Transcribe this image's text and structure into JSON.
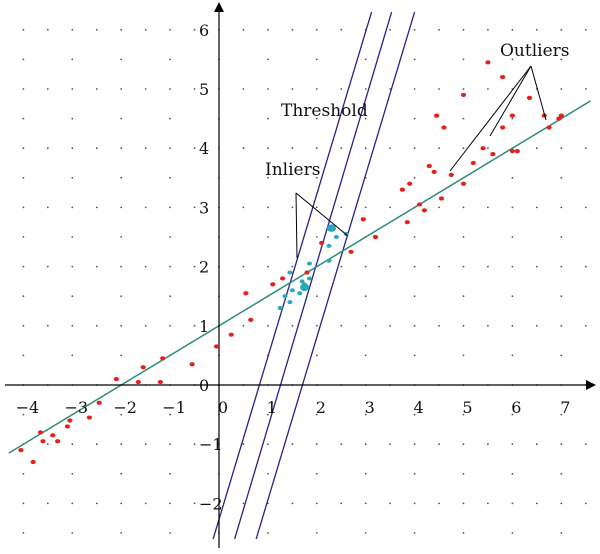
{
  "diagram": {
    "annotations": {
      "threshold": "Threshold",
      "inliers": "Inliers",
      "outliers": "Outliers"
    },
    "colors": {
      "axes": "#000000",
      "grid_dots": "#555555",
      "fit_line": "#2e8b7a",
      "threshold_lines": "#23238c",
      "outlier_points": "#e5211c",
      "inlier_points": "#2aa8b8",
      "pointer_lines": "#000000"
    },
    "axes": {
      "x_ticks": [
        "−4",
        "−3",
        "−2",
        "−1",
        "0",
        "1",
        "2",
        "3",
        "4",
        "5",
        "6",
        "7"
      ],
      "y_ticks": [
        "−2",
        "−1",
        "0",
        "1",
        "2",
        "3",
        "4",
        "5",
        "6"
      ],
      "x_range": [
        -4.4,
        7.6
      ],
      "y_range": [
        -2.7,
        6.3
      ]
    },
    "fit_line": {
      "slope": 0.5,
      "intercept": 1.0,
      "x_range": [
        -4.3,
        7.6
      ]
    },
    "threshold_lines": [
      {
        "slope": 2.75,
        "x_at_y_minus_2_6": -0.12,
        "x_at_y_6_3": 3.12
      },
      {
        "slope": 2.75,
        "x_at_y_minus_2_6": 0.32,
        "x_at_y_6_3": 3.53
      },
      {
        "slope": 2.75,
        "x_at_y_minus_2_6": 0.76,
        "x_at_y_6_3": 4.0
      }
    ],
    "inlier_points": [
      [
        1.45,
        1.9
      ],
      [
        1.5,
        1.6
      ],
      [
        1.45,
        1.4
      ],
      [
        1.35,
        1.5
      ],
      [
        1.25,
        1.3
      ],
      [
        1.7,
        1.75
      ],
      [
        1.85,
        2.05
      ],
      [
        1.75,
        1.7
      ],
      [
        1.65,
        1.55
      ],
      [
        1.85,
        1.8
      ],
      [
        2.25,
        2.35
      ],
      [
        2.3,
        2.65
      ],
      [
        2.4,
        2.5
      ],
      [
        2.6,
        2.55
      ],
      [
        2.25,
        2.1
      ]
    ],
    "inlier_large_points": [
      [
        2.3,
        2.65
      ],
      [
        1.75,
        1.65
      ]
    ],
    "outlier_points": [
      [
        -4.05,
        -1.1
      ],
      [
        -3.8,
        -1.3
      ],
      [
        -3.65,
        -0.8
      ],
      [
        -3.6,
        -0.95
      ],
      [
        -3.4,
        -0.85
      ],
      [
        -3.3,
        -0.95
      ],
      [
        -3.1,
        -0.7
      ],
      [
        -3.05,
        -0.6
      ],
      [
        -2.65,
        -0.55
      ],
      [
        -2.45,
        -0.3
      ],
      [
        -2.1,
        0.1
      ],
      [
        -1.65,
        0.05
      ],
      [
        -1.55,
        0.3
      ],
      [
        -1.2,
        0.05
      ],
      [
        -1.15,
        0.45
      ],
      [
        -0.55,
        0.35
      ],
      [
        -0.05,
        0.65
      ],
      [
        0.25,
        0.85
      ],
      [
        0.65,
        1.1
      ],
      [
        0.55,
        1.55
      ],
      [
        1.1,
        1.7
      ],
      [
        1.3,
        1.8
      ],
      [
        1.8,
        1.9
      ],
      [
        2.1,
        2.4
      ],
      [
        2.7,
        2.25
      ],
      [
        2.95,
        2.8
      ],
      [
        3.2,
        2.5
      ],
      [
        3.75,
        3.3
      ],
      [
        3.9,
        3.4
      ],
      [
        3.85,
        2.75
      ],
      [
        4.1,
        3.05
      ],
      [
        4.2,
        2.95
      ],
      [
        4.3,
        3.7
      ],
      [
        4.4,
        3.6
      ],
      [
        4.55,
        3.15
      ],
      [
        4.75,
        3.55
      ],
      [
        5.0,
        3.4
      ],
      [
        5.2,
        3.75
      ],
      [
        5.4,
        4.0
      ],
      [
        5.6,
        3.9
      ],
      [
        5.8,
        4.35
      ],
      [
        6.0,
        4.55
      ],
      [
        6.0,
        3.95
      ],
      [
        6.1,
        3.95
      ],
      [
        6.35,
        4.85
      ],
      [
        6.65,
        4.55
      ],
      [
        6.75,
        4.35
      ],
      [
        6.95,
        4.5
      ],
      [
        7.0,
        4.55
      ],
      [
        5.5,
        5.45
      ],
      [
        5.8,
        5.2
      ],
      [
        5.0,
        4.9
      ],
      [
        4.6,
        4.35
      ],
      [
        4.45,
        4.55
      ]
    ]
  }
}
